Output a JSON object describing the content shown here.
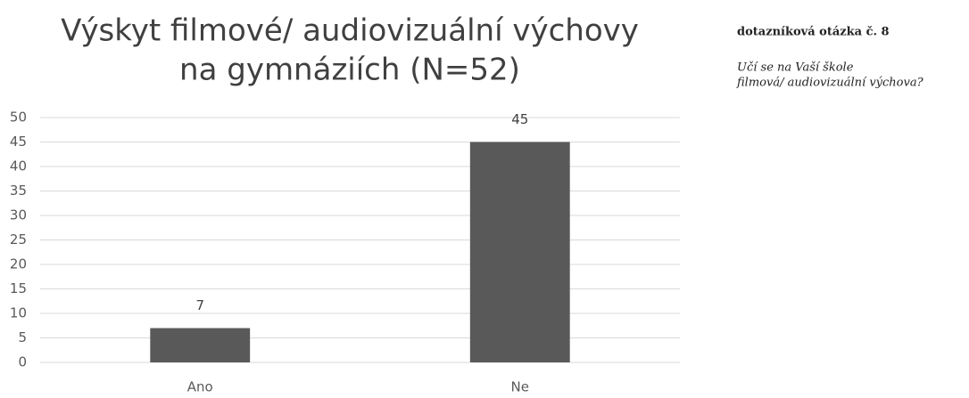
{
  "chart_data": {
    "type": "bar",
    "title": [
      "Výskyt filmové/ audiovizuální výchovy",
      "na gymnáziích (N=52)"
    ],
    "categories": [
      "Ano",
      "Ne"
    ],
    "values": [
      7,
      45
    ],
    "color": "#595959",
    "ylim": [
      0,
      50
    ],
    "yticks": [
      0,
      5,
      10,
      15,
      20,
      25,
      30,
      35,
      40,
      45,
      50
    ],
    "grid": true
  },
  "side_note": {
    "heading": "dotazníková otázka č. 8",
    "question": [
      "Učí se na Vaší škole",
      "filmová/ audiovizuální výchova?"
    ]
  }
}
